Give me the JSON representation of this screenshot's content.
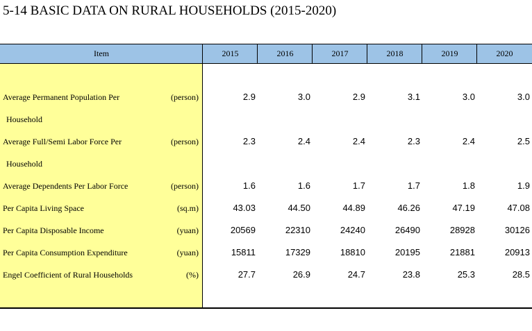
{
  "title": "5-14  BASIC DATA ON RURAL HOUSEHOLDS (2015-2020)",
  "header": {
    "item": "Item",
    "years": [
      "2015",
      "2016",
      "2017",
      "2018",
      "2019",
      "2020"
    ]
  },
  "rows": [
    {
      "label": "Average Permanent Population Per",
      "label2": "Household",
      "unit": "(person)",
      "values": [
        "2.9",
        "3.0",
        "2.9",
        "3.1",
        "3.0",
        "3.0"
      ]
    },
    {
      "label": "Average Full/Semi Labor Force Per",
      "label2": "Household",
      "unit": "(person)",
      "values": [
        "2.3",
        "2.4",
        "2.4",
        "2.3",
        "2.4",
        "2.5"
      ]
    },
    {
      "label": "Average Dependents Per Labor Force",
      "label2": "",
      "unit": "(person)",
      "values": [
        "1.6",
        "1.6",
        "1.7",
        "1.7",
        "1.8",
        "1.9"
      ]
    },
    {
      "label": "Per Capita Living Space",
      "label2": "",
      "unit": "(sq.m)",
      "values": [
        "43.03",
        "44.50",
        "44.89",
        "46.26",
        "47.19",
        "47.08"
      ]
    },
    {
      "label": "Per Capita Disposable Income",
      "label2": "",
      "unit": "(yuan)",
      "values": [
        "20569",
        "22310",
        "24240",
        "26490",
        "28928",
        "30126"
      ]
    },
    {
      "label": "Per Capita Consumption Expenditure",
      "label2": "",
      "unit": "(yuan)",
      "values": [
        "15811",
        "17329",
        "18810",
        "20195",
        "21881",
        "20913"
      ]
    },
    {
      "label": "Engel Coefficient of Rural Households",
      "label2": "",
      "unit": "(%)",
      "values": [
        "27.7",
        "26.9",
        "24.7",
        "23.8",
        "25.3",
        "28.5"
      ]
    }
  ]
}
